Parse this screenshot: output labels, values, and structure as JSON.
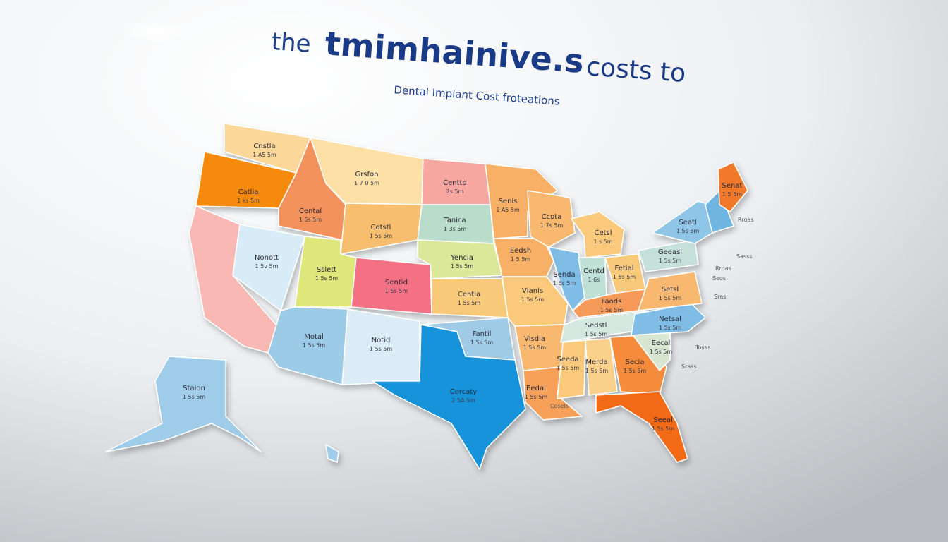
{
  "header": {
    "title_lead": "the",
    "title_main": "tmimhainive.s",
    "title_tail": "costs to",
    "subtitle": "Dental Implant Cost froteations"
  },
  "states": [
    {
      "name": "Cnstla",
      "value": "1 A5 5m"
    },
    {
      "name": "Catlia",
      "value": "1 ks 5m"
    },
    {
      "name": "Grsfon",
      "value": "1 7 0 5m"
    },
    {
      "name": "Cental",
      "value": "1 5s 5m"
    },
    {
      "name": "Cotstl",
      "value": "1 5s 5m"
    },
    {
      "name": "Centtd",
      "value": "2s 5m"
    },
    {
      "name": "Tanica",
      "value": "1 3s 5m"
    },
    {
      "name": "Senis",
      "value": "1 A5 5m"
    },
    {
      "name": "Ccota",
      "value": "1 7s 5m"
    },
    {
      "name": "Cetsl",
      "value": "1 s 5m"
    },
    {
      "name": "Nonott",
      "value": "1 5v 5m"
    },
    {
      "name": "Sslett",
      "value": "1 5s 5m"
    },
    {
      "name": "Sentid",
      "value": "1 5s 5m"
    },
    {
      "name": "Yencia",
      "value": "1 5s 5m"
    },
    {
      "name": "Eedsh",
      "value": "1 5 5m"
    },
    {
      "name": "Senda",
      "value": "1 5s 5m"
    },
    {
      "name": "Centd",
      "value": "1 6s"
    },
    {
      "name": "Fetial",
      "value": "1 5s 5m"
    },
    {
      "name": "Geeasl",
      "value": "1 5s 5m"
    },
    {
      "name": "Seatl",
      "value": "1 5s 5m"
    },
    {
      "name": "Senat",
      "value": "1 5 5m"
    },
    {
      "name": "Centia",
      "value": "1 5s 5m"
    },
    {
      "name": "Vlanis",
      "value": "1 5s 5m"
    },
    {
      "name": "Faods",
      "value": "1 5s 5m"
    },
    {
      "name": "Setsl",
      "value": "1 5s 5m"
    },
    {
      "name": "Motal",
      "value": "1 5s 5m"
    },
    {
      "name": "Notid",
      "value": "1 5s 5m"
    },
    {
      "name": "Fantil",
      "value": "1 5s 5m"
    },
    {
      "name": "Sedstl",
      "value": "1 5s 5m"
    },
    {
      "name": "Netsal",
      "value": "1 5s 5m"
    },
    {
      "name": "Vlsdia",
      "value": "1 5s 5m"
    },
    {
      "name": "Corcaty",
      "value": "2 5A 5m"
    },
    {
      "name": "Seeda",
      "value": "1 5s 5m"
    },
    {
      "name": "Merda",
      "value": "1 5s 5m"
    },
    {
      "name": "Secia",
      "value": "1 5s 5m"
    },
    {
      "name": "Eecal",
      "value": "1 5s 5m"
    },
    {
      "name": "Eedal",
      "value": "1 5s 5m"
    },
    {
      "name": "Seeal",
      "value": "1 5s 5m"
    },
    {
      "name": "Staion",
      "value": "1 5s 5m"
    }
  ],
  "extra_labels": [
    "Cosels",
    "Rroas",
    "Sasss",
    "Rroas",
    "Seos",
    "Sras",
    "Tosas",
    "Srass"
  ]
}
